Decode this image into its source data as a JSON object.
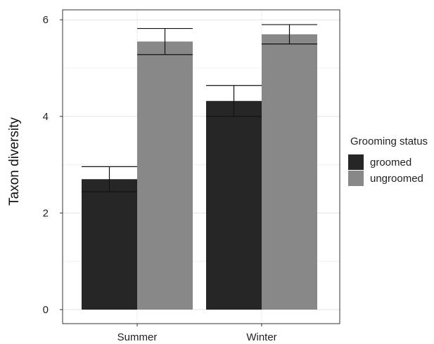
{
  "chart_data": {
    "type": "bar",
    "categories": [
      "Summer",
      "Winter"
    ],
    "ylabel": "Taxon diversity",
    "xlabel": "",
    "ylim": [
      0,
      6.35
    ],
    "yticks": [
      "0",
      "2",
      "4",
      "6"
    ],
    "grid": true,
    "legend_title": "Grooming status",
    "legend_position": "right",
    "series": [
      {
        "name": "groomed",
        "color": "#262626",
        "values": [
          2.7,
          4.32
        ],
        "error": [
          0.26,
          0.32
        ]
      },
      {
        "name": "ungroomed",
        "color": "#888888",
        "values": [
          5.55,
          5.7
        ],
        "error": [
          0.27,
          0.2
        ]
      }
    ]
  }
}
